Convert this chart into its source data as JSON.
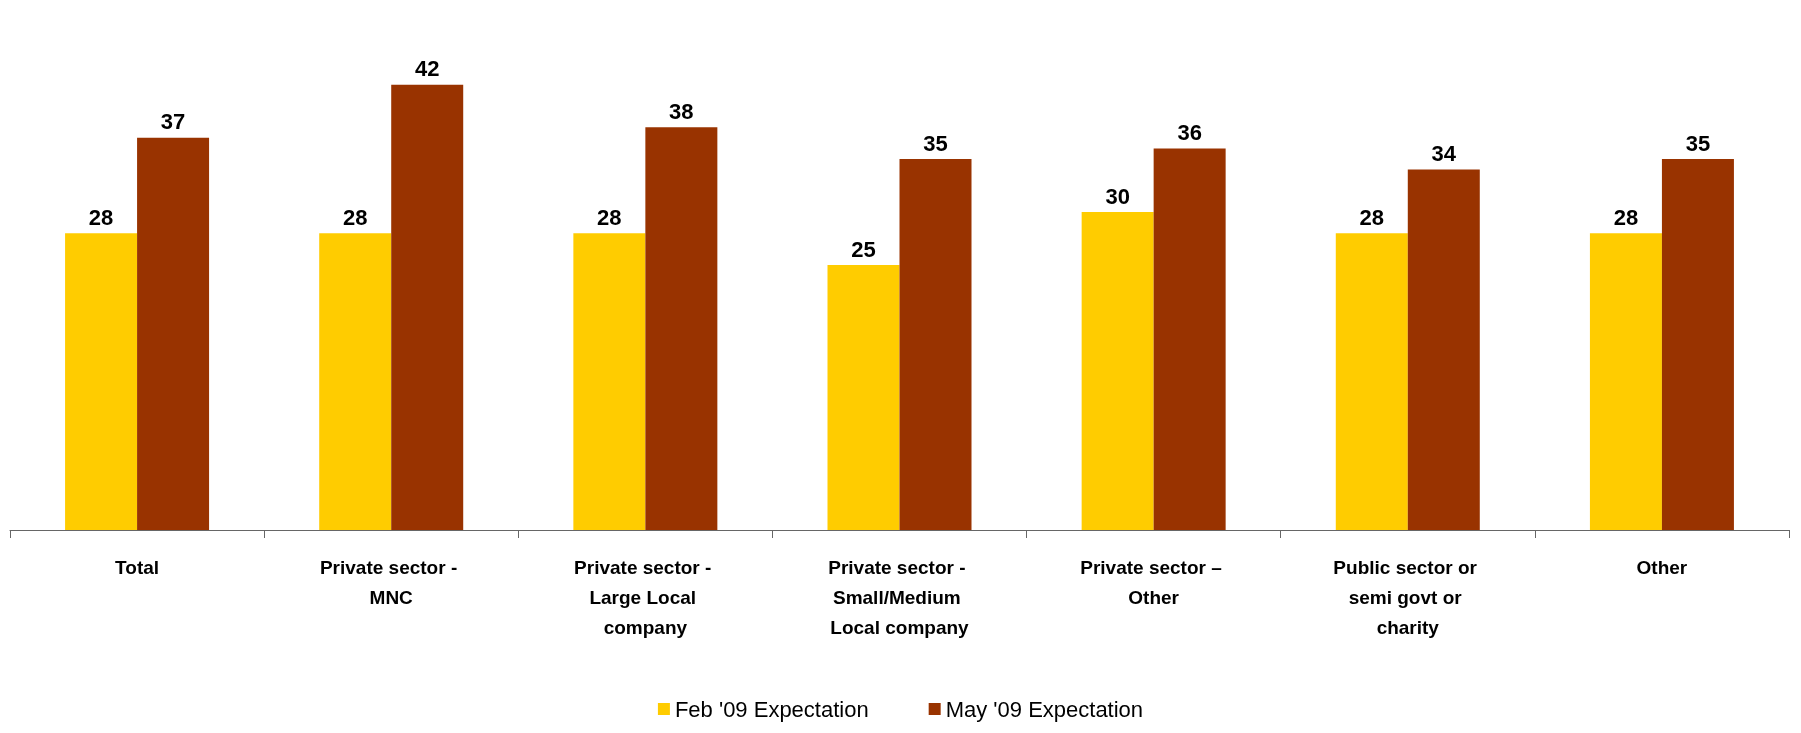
{
  "chart_data": {
    "type": "bar",
    "categories": [
      "Total",
      "Private sector - MNC",
      "Private sector - Large Local company",
      "Private sector - Small/Medium Local company",
      "Private sector – Other",
      "Public sector or semi govt or charity",
      "Other"
    ],
    "series": [
      {
        "name": "Feb '09 Expectation",
        "color": "#ffcc00",
        "values": [
          28,
          28,
          28,
          25,
          30,
          28,
          28
        ]
      },
      {
        "name": "May '09 Expectation",
        "color": "#993300",
        "values": [
          37,
          42,
          38,
          35,
          36,
          34,
          35
        ]
      }
    ],
    "data_labels": true,
    "legend": "bottom"
  }
}
